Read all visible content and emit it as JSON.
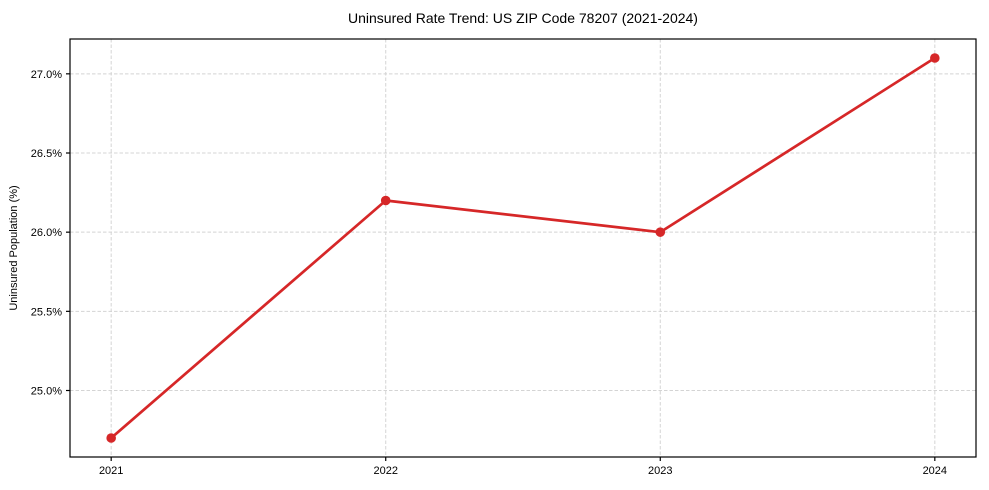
{
  "chart_data": {
    "type": "line",
    "title": "Uninsured Rate Trend: US ZIP Code 78207 (2021-2024)",
    "xlabel": "",
    "ylabel": "Uninsured Population (%)",
    "x": [
      2021,
      2022,
      2023,
      2024
    ],
    "xtick_labels": [
      "2021",
      "2022",
      "2023",
      "2024"
    ],
    "values": [
      24.7,
      26.2,
      26.0,
      27.1
    ],
    "yticks": [
      25.0,
      25.5,
      26.0,
      26.5,
      27.0
    ],
    "ytick_labels": [
      "25.0%",
      "25.5%",
      "26.0%",
      "26.5%",
      "27.0%"
    ],
    "xlim": [
      2020.85,
      2024.15
    ],
    "ylim": [
      24.58,
      27.22
    ],
    "grid": true,
    "grid_style": "dashed",
    "legend_position": "none",
    "marker": "circle",
    "colors": {
      "line": "#d62728",
      "marker": "#d62728",
      "grid": "#d4d4d4",
      "axis": "#000000",
      "text": "#000000",
      "background": "#ffffff"
    }
  }
}
